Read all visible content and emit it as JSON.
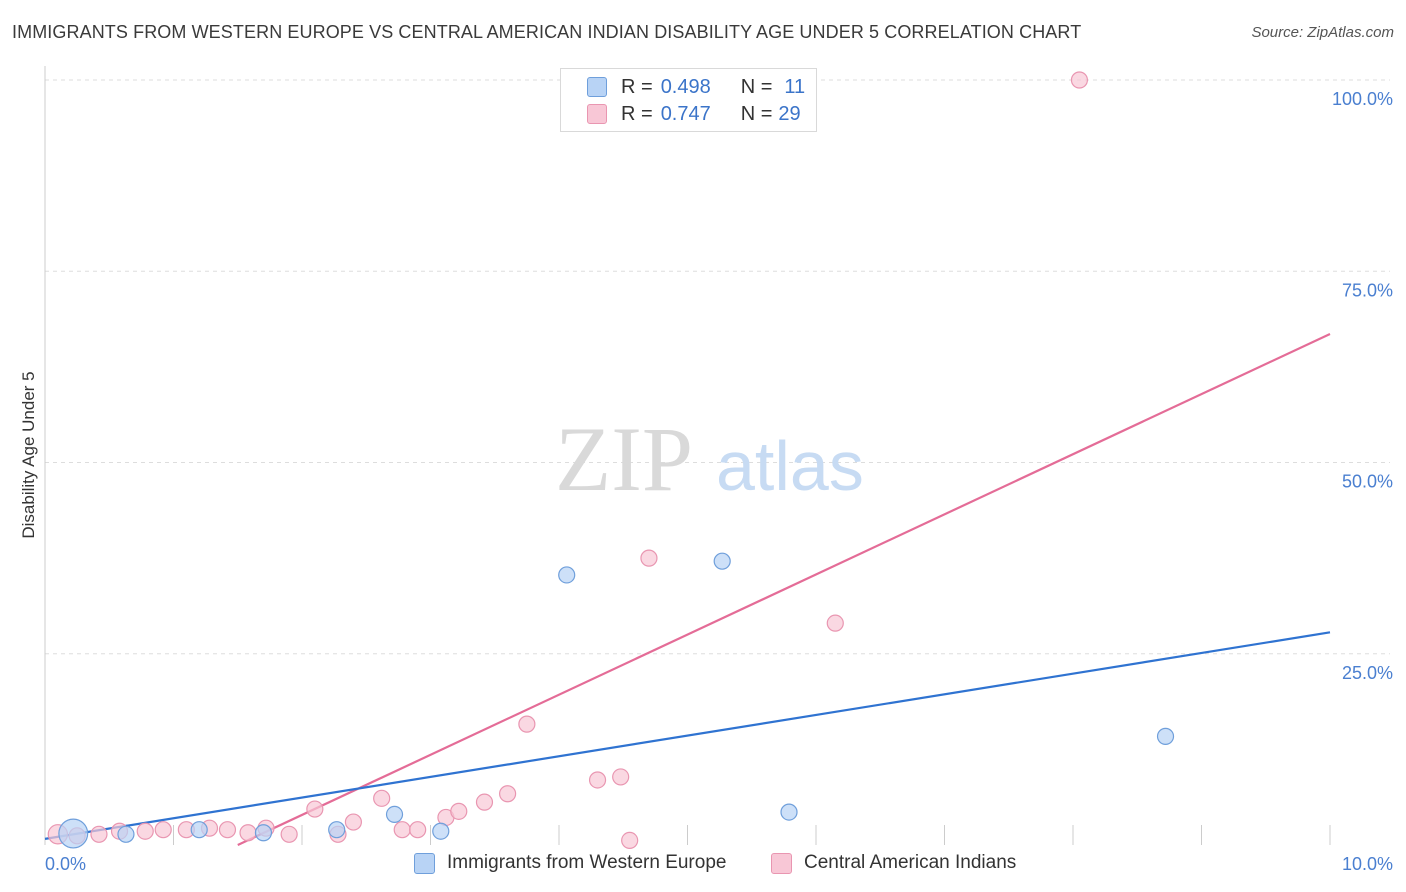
{
  "title": "IMMIGRANTS FROM WESTERN EUROPE VS CENTRAL AMERICAN INDIAN DISABILITY AGE UNDER 5 CORRELATION CHART",
  "source": "Source: ZipAtlas.com",
  "watermark": {
    "zip": "ZIP",
    "atlas": "atlas"
  },
  "legend_top": {
    "rows": [
      {
        "r_label": "R =",
        "r_value": "0.498",
        "n_label": "N =",
        "n_value": "11"
      },
      {
        "r_label": "R =",
        "r_value": "0.747",
        "n_label": "N =",
        "n_value": "29"
      }
    ]
  },
  "legend_bottom": {
    "items": [
      {
        "label": "Immigrants from Western Europe"
      },
      {
        "label": "Central American Indians"
      }
    ]
  },
  "colors": {
    "blue_fill": "#b8d3f5",
    "blue_stroke": "#6f9fdb",
    "blue_line": "#2f73d1",
    "pink_fill": "#f8c7d6",
    "pink_stroke": "#e996b1",
    "pink_line": "#e46c97",
    "grid": "#dddddd",
    "tick_text": "#4a7fd0"
  },
  "chart_data": {
    "type": "scatter",
    "title": "IMMIGRANTS FROM WESTERN EUROPE VS CENTRAL AMERICAN INDIAN DISABILITY AGE UNDER 5 CORRELATION CHART",
    "xlabel": "",
    "ylabel": "Disability Age Under 5",
    "xlim": [
      0,
      10
    ],
    "ylim": [
      0,
      100
    ],
    "x_tick_labels": [
      "0.0%",
      "10.0%"
    ],
    "y_ticks": [
      25,
      50,
      75,
      100
    ],
    "y_tick_labels": [
      "25.0%",
      "50.0%",
      "75.0%",
      "100.0%"
    ],
    "grid": true,
    "legend_position": "top-center",
    "series": [
      {
        "name": "Immigrants from Western Europe",
        "color": "#6f9fdb",
        "points": [
          {
            "x": 0.22,
            "y": 1.5,
            "s": 1.8
          },
          {
            "x": 0.63,
            "y": 1.4,
            "s": 1.0
          },
          {
            "x": 1.2,
            "y": 2.0,
            "s": 1.0
          },
          {
            "x": 1.7,
            "y": 1.6,
            "s": 1.0
          },
          {
            "x": 2.27,
            "y": 2.0,
            "s": 1.0
          },
          {
            "x": 2.72,
            "y": 4.0,
            "s": 1.0
          },
          {
            "x": 3.08,
            "y": 1.8,
            "s": 1.0
          },
          {
            "x": 4.06,
            "y": 35.3,
            "s": 1.0
          },
          {
            "x": 5.27,
            "y": 37.1,
            "s": 1.0
          },
          {
            "x": 5.79,
            "y": 4.3,
            "s": 1.0
          },
          {
            "x": 8.72,
            "y": 14.2,
            "s": 1.0
          }
        ],
        "trendline": {
          "x": [
            0,
            10
          ],
          "y": [
            0.8,
            27.8
          ]
        }
      },
      {
        "name": "Central American Indians",
        "color": "#e996b1",
        "points": [
          {
            "x": 0.1,
            "y": 1.4,
            "s": 1.2
          },
          {
            "x": 0.25,
            "y": 1.2,
            "s": 1.0
          },
          {
            "x": 0.42,
            "y": 1.4,
            "s": 1.0
          },
          {
            "x": 0.58,
            "y": 1.8,
            "s": 1.0
          },
          {
            "x": 0.78,
            "y": 1.8,
            "s": 1.0
          },
          {
            "x": 0.92,
            "y": 2.0,
            "s": 1.0
          },
          {
            "x": 1.1,
            "y": 2.0,
            "s": 1.0
          },
          {
            "x": 1.28,
            "y": 2.2,
            "s": 1.0
          },
          {
            "x": 1.42,
            "y": 2.0,
            "s": 1.0
          },
          {
            "x": 1.58,
            "y": 1.6,
            "s": 1.0
          },
          {
            "x": 1.72,
            "y": 2.2,
            "s": 1.0
          },
          {
            "x": 1.9,
            "y": 1.4,
            "s": 1.0
          },
          {
            "x": 2.1,
            "y": 4.7,
            "s": 1.0
          },
          {
            "x": 2.28,
            "y": 1.4,
            "s": 1.0
          },
          {
            "x": 2.4,
            "y": 3.0,
            "s": 1.0
          },
          {
            "x": 2.62,
            "y": 6.1,
            "s": 1.0
          },
          {
            "x": 2.78,
            "y": 2.0,
            "s": 1.0
          },
          {
            "x": 2.9,
            "y": 2.0,
            "s": 1.0
          },
          {
            "x": 3.12,
            "y": 3.6,
            "s": 1.0
          },
          {
            "x": 3.22,
            "y": 4.4,
            "s": 1.0
          },
          {
            "x": 3.42,
            "y": 5.6,
            "s": 1.0
          },
          {
            "x": 3.6,
            "y": 6.7,
            "s": 1.0
          },
          {
            "x": 3.75,
            "y": 15.8,
            "s": 1.0
          },
          {
            "x": 4.3,
            "y": 8.5,
            "s": 1.0
          },
          {
            "x": 4.48,
            "y": 8.9,
            "s": 1.0
          },
          {
            "x": 4.55,
            "y": 0.6,
            "s": 1.0
          },
          {
            "x": 4.7,
            "y": 37.5,
            "s": 1.0
          },
          {
            "x": 6.15,
            "y": 29.0,
            "s": 1.0
          },
          {
            "x": 8.05,
            "y": 100.0,
            "s": 1.0
          }
        ],
        "trendline": {
          "x": [
            1.5,
            10
          ],
          "y": [
            0,
            66.8
          ]
        }
      }
    ]
  }
}
